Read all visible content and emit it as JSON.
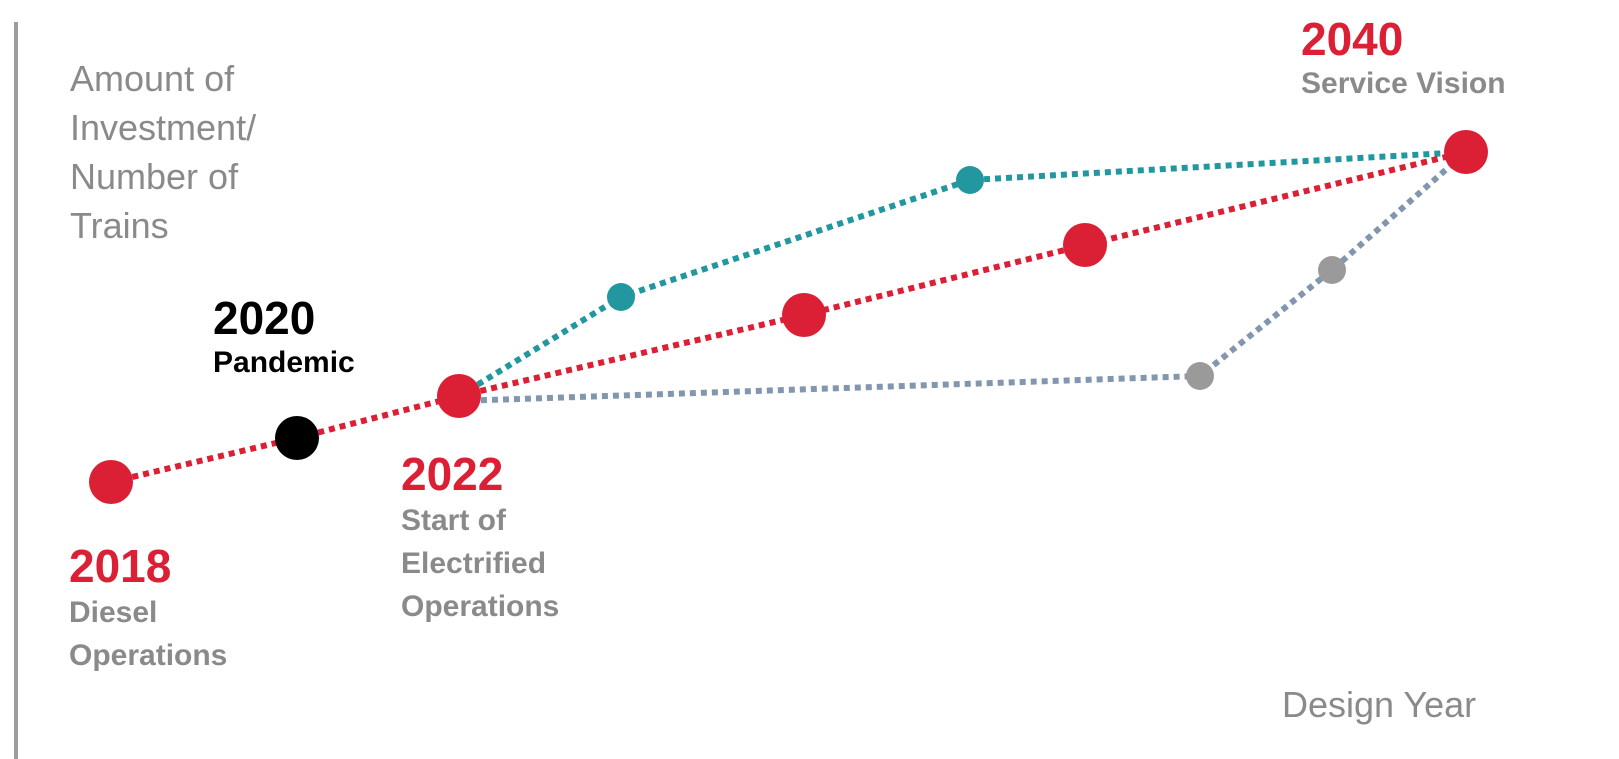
{
  "axes": {
    "y_label": "Amount of Investment/ Number of Trains",
    "x_label": "Design Year"
  },
  "milestones": {
    "m2018": {
      "year": "2018",
      "description": "Diesel Operations"
    },
    "m2020": {
      "year": "2020",
      "description": "Pandemic"
    },
    "m2022": {
      "year": "2022",
      "description": "Start of Electrified Operations"
    },
    "m2040": {
      "year": "2040",
      "description": "Service Vision"
    }
  },
  "colors": {
    "red": "#db1f35",
    "teal": "#23979f",
    "slate": "#8296ae",
    "gray": "#9a9a9a",
    "black": "#000000",
    "axis": "#9c9c9c",
    "label_gray": "#8a8a8a"
  }
}
